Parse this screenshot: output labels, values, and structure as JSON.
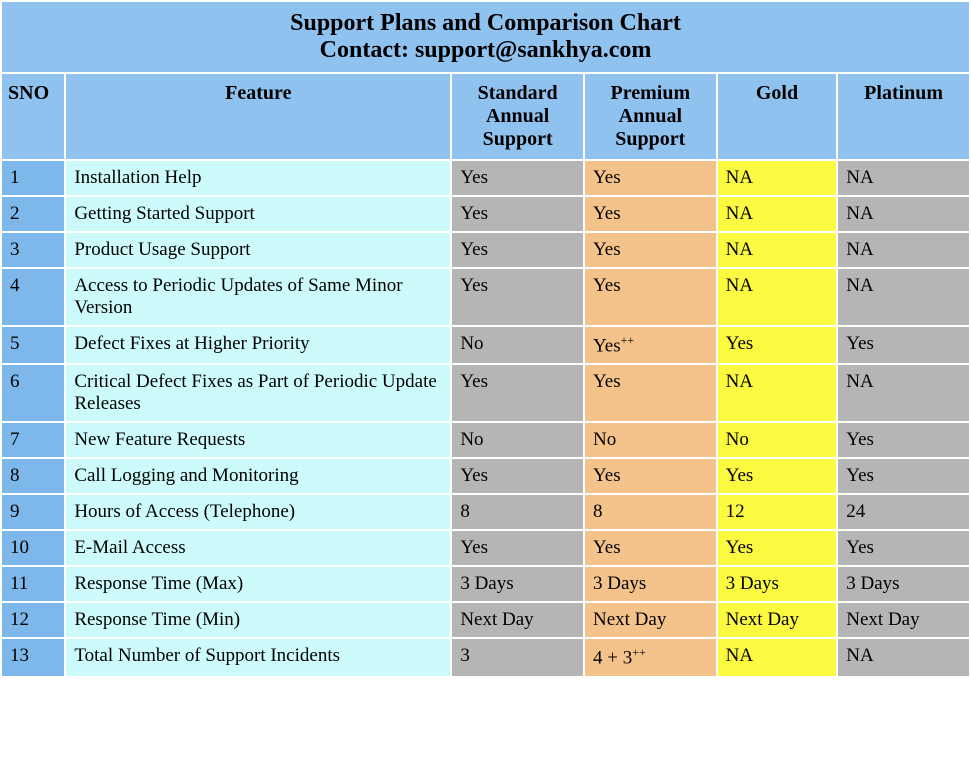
{
  "title_line1": "Support Plans and Comparison Chart",
  "title_line2": "Contact: support@sankhya.com",
  "columns": {
    "sno": "SNO",
    "feature": "Feature",
    "standard": "Standard Annual Support",
    "premium": "Premium Annual Support",
    "gold": "Gold",
    "platinum": "Platinum"
  },
  "styling": {
    "title_bg": "#90c2ef",
    "header_bg": "#90c2ef",
    "sno_bg": "#7eb8ea",
    "feature_bg": "#cdfbfb",
    "standard_bg": "#b5b5b5",
    "premium_bg": "#f4c38c",
    "gold_bg": "#fcfa40",
    "platinum_bg": "#b5b5b5",
    "border_color": "#ffffff",
    "border_width": 2,
    "font_family": "Times New Roman",
    "title_fontsize": 24,
    "header_fontsize": 20,
    "cell_fontsize": 19,
    "col_widths": {
      "sno": 64,
      "feature": 384,
      "standard": 132,
      "premium": 132,
      "gold": 120,
      "platinum": 132
    }
  },
  "rows": [
    {
      "sno": "1",
      "feature": "Installation Help",
      "standard": "Yes",
      "premium": "Yes",
      "gold": "NA",
      "platinum": "NA"
    },
    {
      "sno": "2",
      "feature": "Getting Started Support",
      "standard": "Yes",
      "premium": "Yes",
      "gold": "NA",
      "platinum": "NA"
    },
    {
      "sno": "3",
      "feature": "Product Usage Support",
      "standard": "Yes",
      "premium": "Yes",
      "gold": "NA",
      "platinum": "NA"
    },
    {
      "sno": "4",
      "feature": "Access to Periodic Updates of Same Minor Version",
      "standard": "Yes",
      "premium": "Yes",
      "gold": "NA",
      "platinum": "NA"
    },
    {
      "sno": "5",
      "feature": "Defect Fixes at Higher Priority",
      "standard": "No",
      "premium": "Yes",
      "premium_sup": "++",
      "gold": "Yes",
      "platinum": "Yes"
    },
    {
      "sno": "6",
      "feature": "Critical Defect Fixes as Part of Periodic Update Releases",
      "standard": "Yes",
      "premium": "Yes",
      "gold": "NA",
      "platinum": "NA"
    },
    {
      "sno": "7",
      "feature": "New Feature Requests",
      "standard": "No",
      "premium": "No",
      "gold": "No",
      "platinum": "Yes"
    },
    {
      "sno": "8",
      "feature": "Call Logging and Monitoring",
      "standard": "Yes",
      "premium": "Yes",
      "gold": "Yes",
      "platinum": "Yes"
    },
    {
      "sno": "9",
      "feature": "Hours of Access (Telephone)",
      "standard": "8",
      "premium": "8",
      "gold": "12",
      "platinum": "24"
    },
    {
      "sno": "10",
      "feature": "E-Mail Access",
      "standard": "Yes",
      "premium": "Yes",
      "gold": "Yes",
      "platinum": "Yes"
    },
    {
      "sno": "11",
      "feature": "Response Time (Max)",
      "standard": "3 Days",
      "premium": "3 Days",
      "gold": "3 Days",
      "platinum": "3 Days"
    },
    {
      "sno": "12",
      "feature": "Response Time (Min)",
      "standard": "Next Day",
      "premium": "Next Day",
      "gold": "Next Day",
      "platinum": "Next Day"
    },
    {
      "sno": "13",
      "feature": "Total Number of Support Incidents",
      "standard": "3",
      "premium": "4 + 3",
      "premium_sup": "++",
      "gold": "NA",
      "platinum": "NA"
    }
  ]
}
